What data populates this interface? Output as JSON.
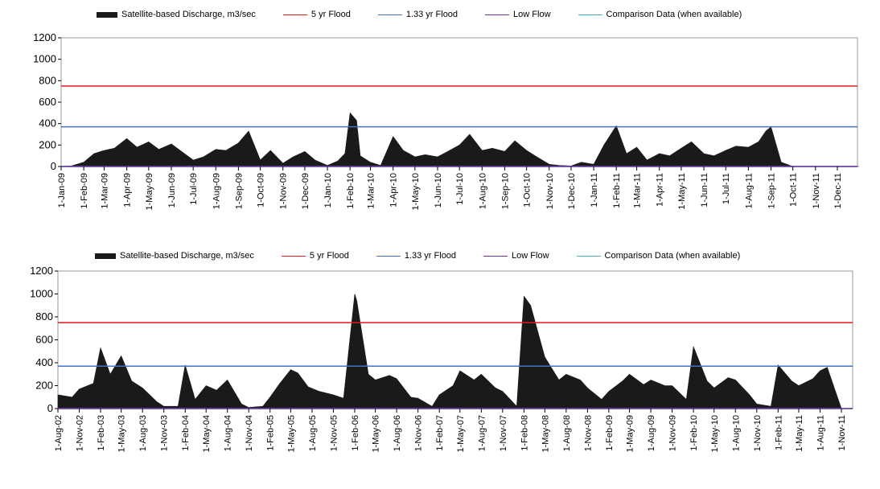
{
  "legend": {
    "discharge": "Satellite-based Discharge, m3/sec",
    "flood5": "5 yr Flood",
    "flood133": "1.33 yr Flood",
    "lowflow": "Low Flow",
    "comparison": "Comparison Data (when available)"
  },
  "colors": {
    "discharge": "#1a1a1a",
    "flood5": "#e31a1c",
    "flood133": "#4472c4",
    "lowflow": "#7030a0",
    "comparison": "#4bacc6"
  },
  "chart_data": [
    {
      "type": "area",
      "title": "",
      "xlabel": "",
      "ylabel": "",
      "ylim": [
        0,
        1200
      ],
      "yticks": [
        0,
        200,
        400,
        600,
        800,
        1000,
        1200
      ],
      "xticks": [
        "1-Jan-09",
        "1-Feb-09",
        "1-Mar-09",
        "1-Apr-09",
        "1-May-09",
        "1-Jun-09",
        "1-Jul-09",
        "1-Aug-09",
        "1-Sep-09",
        "1-Oct-09",
        "1-Nov-09",
        "1-Dec-09",
        "1-Jan-10",
        "1-Feb-10",
        "1-Mar-10",
        "1-Apr-10",
        "1-May-10",
        "1-Jun-10",
        "1-Jul-10",
        "1-Aug-10",
        "1-Sep-10",
        "1-Oct-10",
        "1-Nov-10",
        "1-Dec-10",
        "1-Jan-11",
        "1-Feb-11",
        "1-Mar-11",
        "1-Apr-11",
        "1-May-11",
        "1-Jun-11",
        "1-Jul-11",
        "1-Aug-11",
        "1-Sep-11",
        "1-Oct-11",
        "1-Nov-11",
        "1-Dec-11"
      ],
      "reference_lines": {
        "flood5": 750,
        "flood133": 370,
        "lowflow": 0,
        "comparison": 0
      },
      "grid": false,
      "legend_position": "top",
      "series": [
        {
          "name": "Satellite-based Discharge, m3/sec",
          "x": [
            "1-Jan-09",
            "15-Jan-09",
            "1-Feb-09",
            "15-Feb-09",
            "1-Mar-09",
            "15-Mar-09",
            "1-Apr-09",
            "15-Apr-09",
            "1-May-09",
            "15-May-09",
            "1-Jun-09",
            "15-Jun-09",
            "1-Jul-09",
            "15-Jul-09",
            "1-Aug-09",
            "15-Aug-09",
            "1-Sep-09",
            "15-Sep-09",
            "1-Oct-09",
            "15-Oct-09",
            "1-Nov-09",
            "15-Nov-09",
            "1-Dec-09",
            "15-Dec-09",
            "1-Jan-10",
            "15-Jan-10",
            "25-Jan-10",
            "1-Feb-10",
            "10-Feb-10",
            "15-Feb-10",
            "1-Mar-10",
            "15-Mar-10",
            "1-Apr-10",
            "15-Apr-10",
            "1-May-10",
            "15-May-10",
            "1-Jun-10",
            "15-Jun-10",
            "1-Jul-10",
            "15-Jul-10",
            "1-Aug-10",
            "15-Aug-10",
            "1-Sep-10",
            "15-Sep-10",
            "1-Oct-10",
            "15-Oct-10",
            "1-Nov-10",
            "15-Nov-10",
            "1-Dec-10",
            "15-Dec-10",
            "1-Jan-11",
            "15-Jan-11",
            "1-Feb-11",
            "15-Feb-11",
            "1-Mar-11",
            "15-Mar-11",
            "1-Apr-11",
            "15-Apr-11",
            "1-May-11",
            "15-May-11",
            "1-Jun-11",
            "15-Jun-11",
            "1-Jul-11",
            "15-Jul-11",
            "1-Aug-11",
            "15-Aug-11",
            "25-Aug-11",
            "1-Sep-11",
            "15-Sep-11",
            "1-Oct-11",
            "1-Nov-11",
            "1-Dec-11",
            "31-Dec-11"
          ],
          "values": [
            0,
            5,
            40,
            120,
            150,
            170,
            260,
            180,
            230,
            160,
            210,
            140,
            60,
            90,
            160,
            150,
            220,
            330,
            60,
            150,
            30,
            90,
            140,
            60,
            10,
            50,
            120,
            500,
            430,
            100,
            40,
            10,
            280,
            150,
            90,
            110,
            90,
            140,
            200,
            300,
            150,
            170,
            140,
            240,
            150,
            90,
            20,
            10,
            5,
            40,
            20,
            200,
            380,
            120,
            180,
            60,
            120,
            100,
            170,
            230,
            120,
            100,
            150,
            190,
            180,
            230,
            330,
            370,
            40,
            0,
            0,
            0,
            0
          ]
        }
      ]
    },
    {
      "type": "area",
      "title": "",
      "xlabel": "",
      "ylabel": "",
      "ylim": [
        0,
        1200
      ],
      "yticks": [
        0,
        200,
        400,
        600,
        800,
        1000,
        1200
      ],
      "xticks": [
        "1-Aug-02",
        "1-Nov-02",
        "1-Feb-03",
        "1-May-03",
        "1-Aug-03",
        "1-Nov-03",
        "1-Feb-04",
        "1-May-04",
        "1-Aug-04",
        "1-Nov-04",
        "1-Feb-05",
        "1-May-05",
        "1-Aug-05",
        "1-Nov-05",
        "1-Feb-06",
        "1-May-06",
        "1-Aug-06",
        "1-Nov-06",
        "1-Feb-07",
        "1-May-07",
        "1-Aug-07",
        "1-Nov-07",
        "1-Feb-08",
        "1-May-08",
        "1-Aug-08",
        "1-Nov-08",
        "1-Feb-09",
        "1-May-09",
        "1-Aug-09",
        "1-Nov-09",
        "1-Feb-10",
        "1-May-10",
        "1-Aug-10",
        "1-Nov-10",
        "1-Feb-11",
        "1-May-11",
        "1-Aug-11",
        "1-Nov-11"
      ],
      "reference_lines": {
        "flood5": 750,
        "flood133": 370,
        "lowflow": 0,
        "comparison": 0
      },
      "grid": false,
      "legend_position": "top",
      "series": [
        {
          "name": "Satellite-based Discharge, m3/sec",
          "x": [
            "1-Aug-02",
            "1-Oct-02",
            "1-Nov-02",
            "1-Jan-03",
            "1-Feb-03",
            "15-Mar-03",
            "1-May-03",
            "15-Jun-03",
            "1-Aug-03",
            "1-Oct-03",
            "1-Nov-03",
            "1-Jan-04",
            "1-Feb-04",
            "15-Mar-04",
            "1-May-04",
            "15-Jun-04",
            "1-Aug-04",
            "1-Oct-04",
            "1-Nov-04",
            "1-Jan-05",
            "1-Feb-05",
            "15-Mar-05",
            "1-May-05",
            "1-Jun-05",
            "15-Jul-05",
            "1-Sep-05",
            "1-Nov-05",
            "15-Dec-05",
            "1-Feb-06",
            "10-Feb-06",
            "1-Mar-06",
            "1-Apr-06",
            "1-May-06",
            "1-Jul-06",
            "1-Aug-06",
            "1-Oct-06",
            "1-Nov-06",
            "1-Jan-07",
            "1-Feb-07",
            "1-Apr-07",
            "1-May-07",
            "1-Jul-07",
            "1-Aug-07",
            "1-Oct-07",
            "1-Nov-07",
            "1-Jan-08",
            "1-Feb-08",
            "1-Mar-08",
            "1-May-08",
            "1-Jul-08",
            "1-Aug-08",
            "1-Oct-08",
            "1-Nov-08",
            "1-Jan-09",
            "1-Feb-09",
            "1-Apr-09",
            "1-May-09",
            "1-Jul-09",
            "1-Aug-09",
            "1-Oct-09",
            "1-Nov-09",
            "1-Jan-10",
            "1-Feb-10",
            "1-Apr-10",
            "1-May-10",
            "1-Jul-10",
            "1-Aug-10",
            "1-Oct-10",
            "1-Nov-10",
            "1-Jan-11",
            "1-Feb-11",
            "1-Apr-11",
            "1-May-11",
            "1-Jul-11",
            "1-Aug-11",
            "1-Sep-11",
            "1-Nov-11",
            "1-Dec-11"
          ],
          "values": [
            120,
            100,
            170,
            220,
            530,
            300,
            460,
            240,
            180,
            60,
            20,
            20,
            380,
            80,
            200,
            160,
            250,
            40,
            10,
            20,
            100,
            220,
            340,
            310,
            190,
            150,
            120,
            90,
            1000,
            940,
            700,
            300,
            250,
            290,
            260,
            100,
            90,
            20,
            120,
            200,
            330,
            250,
            300,
            180,
            150,
            20,
            980,
            900,
            450,
            250,
            300,
            250,
            180,
            80,
            150,
            240,
            300,
            210,
            250,
            200,
            200,
            80,
            540,
            240,
            180,
            270,
            250,
            120,
            40,
            20,
            380,
            240,
            200,
            260,
            330,
            360,
            0,
            0
          ]
        }
      ]
    }
  ]
}
